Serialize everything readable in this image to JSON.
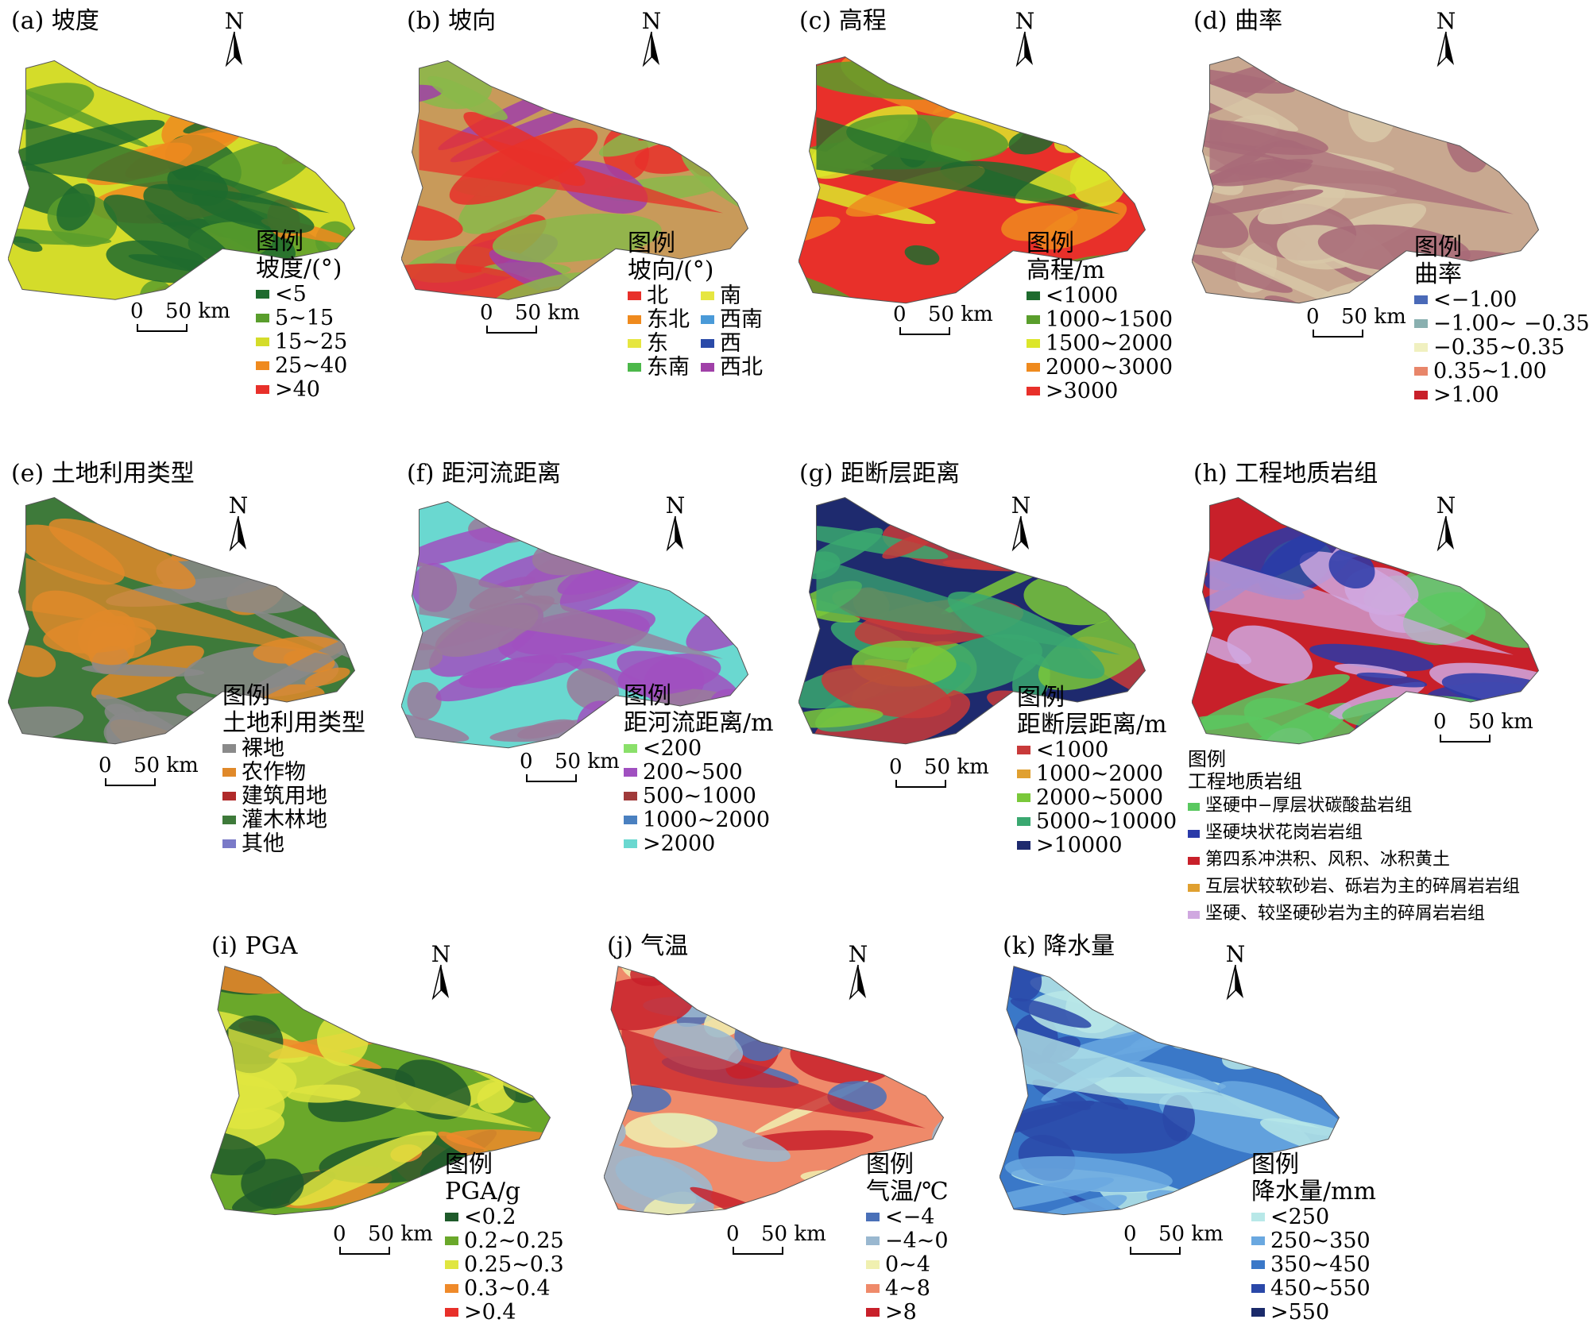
{
  "panels": [
    {
      "id": "a",
      "title": "(a) 坡度",
      "legend_title": "图例",
      "legend_subtitle": "坡度/(°)",
      "items": [
        {
          "label": "<5",
          "color": "#1e6b2e"
        },
        {
          "label": "5~15",
          "color": "#5a9e2c"
        },
        {
          "label": "15~25",
          "color": "#d4dc2a"
        },
        {
          "label": "25~40",
          "color": "#ef8a1e"
        },
        {
          "label": ">40",
          "color": "#e8302a"
        }
      ],
      "scale": {
        "zero": "0",
        "text": "50 km"
      },
      "north": "N",
      "map_colors": [
        "#d4dc2a",
        "#1e6b2e",
        "#ef8a1e",
        "#5a9e2c"
      ]
    },
    {
      "id": "b",
      "title": "(b) 坡向",
      "legend_title": "图例",
      "legend_subtitle": "坡向/(°)",
      "items": [
        {
          "label": "北",
          "color": "#e8302a"
        },
        {
          "label": "东北",
          "color": "#ef8a1e"
        },
        {
          "label": "东",
          "color": "#e6e640"
        },
        {
          "label": "东南",
          "color": "#4cb84a"
        },
        {
          "label": "南",
          "color": "#e6e640"
        },
        {
          "label": "西南",
          "color": "#4a9ad8"
        },
        {
          "label": "西",
          "color": "#2a4aa8"
        },
        {
          "label": "西北",
          "color": "#a040a8"
        }
      ],
      "scale": {
        "zero": "0",
        "text": "50 km"
      },
      "north": "N",
      "map_colors": [
        "#c89a5a",
        "#e8302a",
        "#8ab84a",
        "#a040a8"
      ]
    },
    {
      "id": "c",
      "title": "(c) 高程",
      "legend_title": "图例",
      "legend_subtitle": "高程/m",
      "items": [
        {
          "label": "<1000",
          "color": "#1e6b2e"
        },
        {
          "label": "1000~1500",
          "color": "#5a9e2c"
        },
        {
          "label": "1500~2000",
          "color": "#dce62a"
        },
        {
          "label": "2000~3000",
          "color": "#ef8a1e"
        },
        {
          "label": ">3000",
          "color": "#e8302a"
        }
      ],
      "scale": {
        "zero": "0",
        "text": "50 km"
      },
      "north": "N",
      "map_colors": [
        "#e8302a",
        "#1e6b2e",
        "#ef8a1e",
        "#5a9e2c",
        "#dce62a"
      ]
    },
    {
      "id": "d",
      "title": "(d) 曲率",
      "legend_title": "图例",
      "legend_subtitle": "曲率",
      "items": [
        {
          "label": "<−1.00",
          "color": "#4a6ab8"
        },
        {
          "label": "−1.00~ −0.35",
          "color": "#8ab0b0"
        },
        {
          "label": "−0.35~0.35",
          "color": "#f0f0c0"
        },
        {
          "label": "0.35~1.00",
          "color": "#e8866a"
        },
        {
          "label": ">1.00",
          "color": "#c8202a"
        }
      ],
      "scale": {
        "zero": "0",
        "text": "50 km"
      },
      "north": "N",
      "map_colors": [
        "#c8a890",
        "#a86a78",
        "#d8c8a8"
      ]
    },
    {
      "id": "e",
      "title": "(e) 土地利用类型",
      "legend_title": "图例",
      "legend_subtitle": "土地利用类型",
      "items": [
        {
          "label": "裸地",
          "color": "#8a8a8a"
        },
        {
          "label": "农作物",
          "color": "#e0892a"
        },
        {
          "label": "建筑用地",
          "color": "#b02a2a"
        },
        {
          "label": "灌木林地",
          "color": "#3e7a3a"
        },
        {
          "label": "其他",
          "color": "#7a7ac8"
        }
      ],
      "scale": {
        "zero": "0",
        "text": "50 km"
      },
      "north": "N",
      "map_colors": [
        "#3e7a3a",
        "#e0892a",
        "#8a8a8a"
      ]
    },
    {
      "id": "f",
      "title": "(f) 距河流距离",
      "legend_title": "图例",
      "legend_subtitle": "距河流距离/m",
      "items": [
        {
          "label": "<200",
          "color": "#8ae06a"
        },
        {
          "label": "200~500",
          "color": "#a050c0"
        },
        {
          "label": "500~1000",
          "color": "#a03a3a"
        },
        {
          "label": "1000~2000",
          "color": "#4a80c0"
        },
        {
          "label": ">2000",
          "color": "#6ad8d0"
        }
      ],
      "scale": {
        "zero": "0",
        "text": "50 km"
      },
      "north": "N",
      "map_colors": [
        "#6ad8d0",
        "#9a7a9a",
        "#a050c0"
      ]
    },
    {
      "id": "g",
      "title": "(g) 距断层距离",
      "legend_title": "图例",
      "legend_subtitle": "距断层距离/m",
      "items": [
        {
          "label": "<1000",
          "color": "#c83a3a"
        },
        {
          "label": "1000~2000",
          "color": "#e0a030"
        },
        {
          "label": "2000~5000",
          "color": "#7ac83a"
        },
        {
          "label": "5000~10000",
          "color": "#3aa870"
        },
        {
          "label": ">10000",
          "color": "#1e2a6e"
        }
      ],
      "scale": {
        "zero": "0",
        "text": "50 km"
      },
      "north": "N",
      "map_colors": [
        "#1e2a6e",
        "#3aa870",
        "#7ac83a",
        "#c83a3a"
      ]
    },
    {
      "id": "h",
      "title": "(h) 工程地质岩组",
      "legend_title": "图例",
      "legend_subtitle": "工程地质岩组",
      "items": [
        {
          "label": "坚硬中−厚层状碳酸盐岩组",
          "color": "#5ac860"
        },
        {
          "label": "坚硬块状花岗岩岩组",
          "color": "#2a3aa8"
        },
        {
          "label": "第四系冲洪积、风积、冰积黄土",
          "color": "#c8202a"
        },
        {
          "label": "互层状较软砂岩、砾岩为主的碎屑岩岩组",
          "color": "#e0a030"
        },
        {
          "label": "坚硬、较坚硬砂岩为主的碎屑岩岩组",
          "color": "#d0a8e0"
        }
      ],
      "scale": {
        "zero": "0",
        "text": "50 km"
      },
      "north": "N",
      "map_colors": [
        "#c8202a",
        "#d0a8e0",
        "#5ac860",
        "#2a3aa8"
      ]
    },
    {
      "id": "i",
      "title": "(i) PGA",
      "legend_title": "图例",
      "legend_subtitle": "PGA/g",
      "items": [
        {
          "label": "<0.2",
          "color": "#1e5a2a"
        },
        {
          "label": "0.2~0.25",
          "color": "#6aa82a"
        },
        {
          "label": "0.25~0.3",
          "color": "#e0e640"
        },
        {
          "label": "0.3~0.4",
          "color": "#ef8a2a"
        },
        {
          "label": ">0.4",
          "color": "#e8302a"
        }
      ],
      "scale": {
        "zero": "0",
        "text": "50 km"
      },
      "north": "N",
      "map_colors": [
        "#6aa82a",
        "#e0e640",
        "#1e5a2a",
        "#ef8a2a"
      ]
    },
    {
      "id": "j",
      "title": "(j) 气温",
      "legend_title": "图例",
      "legend_subtitle": "气温/℃",
      "items": [
        {
          "label": "<−4",
          "color": "#4a70b8"
        },
        {
          "label": "−4~0",
          "color": "#9ab8d0"
        },
        {
          "label": "0~4",
          "color": "#f0f0b0"
        },
        {
          "label": "4~8",
          "color": "#ef8a6a"
        },
        {
          "label": ">8",
          "color": "#c8202a"
        }
      ],
      "scale": {
        "zero": "0",
        "text": "50 km"
      },
      "north": "N",
      "map_colors": [
        "#ef8a6a",
        "#c8202a",
        "#f0f0b0",
        "#4a70b8",
        "#9ab8d0"
      ]
    },
    {
      "id": "k",
      "title": "(k) 降水量",
      "legend_title": "图例",
      "legend_subtitle": "降水量/mm",
      "items": [
        {
          "label": "<250",
          "color": "#b8e8e8"
        },
        {
          "label": "250~350",
          "color": "#6aa8e0"
        },
        {
          "label": "350~450",
          "color": "#3a78c8"
        },
        {
          "label": "450~550",
          "color": "#2a48a8"
        },
        {
          "label": ">550",
          "color": "#1a2a6a"
        }
      ],
      "scale": {
        "zero": "0",
        "text": "50 km"
      },
      "north": "N",
      "map_colors": [
        "#3a78c8",
        "#b8e8e8",
        "#6aa8e0",
        "#2a48a8"
      ]
    }
  ]
}
